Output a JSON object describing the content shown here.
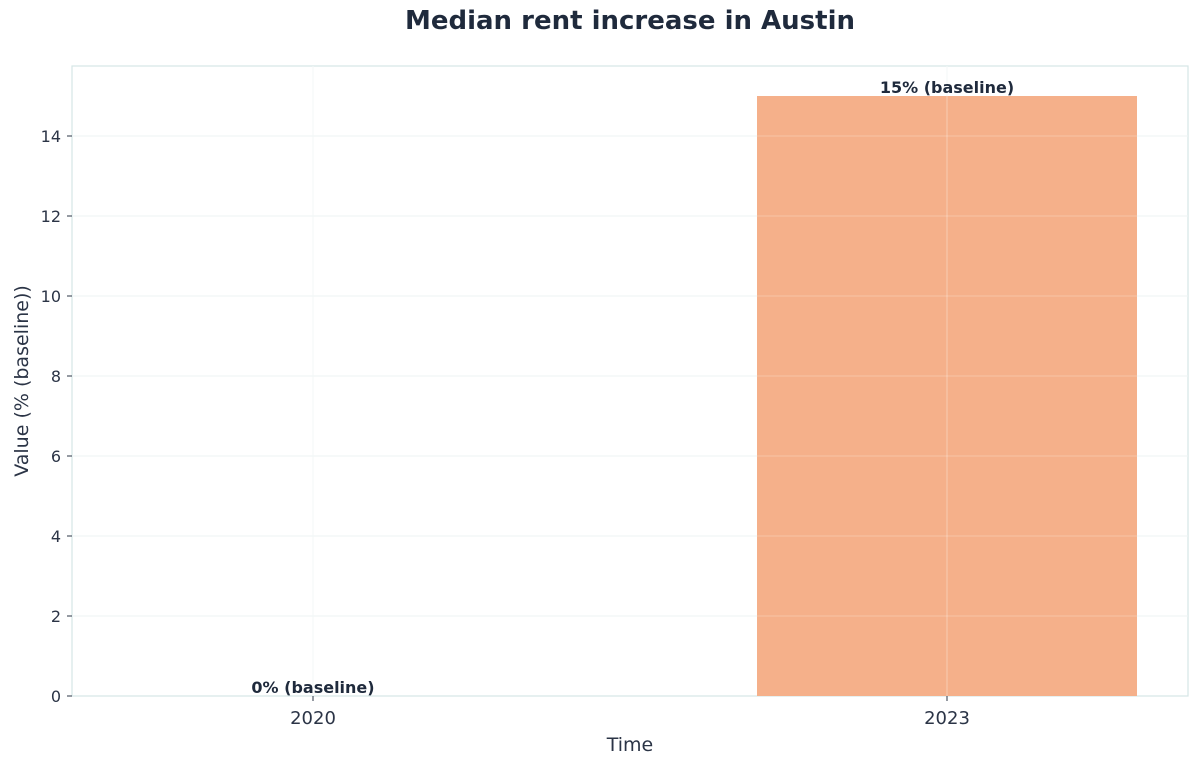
{
  "chart_data": {
    "type": "bar",
    "title": "Median rent increase in Austin",
    "xlabel": "Time",
    "ylabel": "Value (% (baseline))",
    "categories": [
      "2020",
      "2023"
    ],
    "values": [
      0,
      15
    ],
    "data_labels": [
      "0% (baseline)",
      "15% (baseline)"
    ],
    "ylim": [
      0,
      15.75
    ],
    "yticks": [
      0,
      2,
      4,
      6,
      8,
      10,
      12,
      14
    ],
    "grid": true,
    "legend": "none",
    "bar_color": "#f5b08a"
  }
}
